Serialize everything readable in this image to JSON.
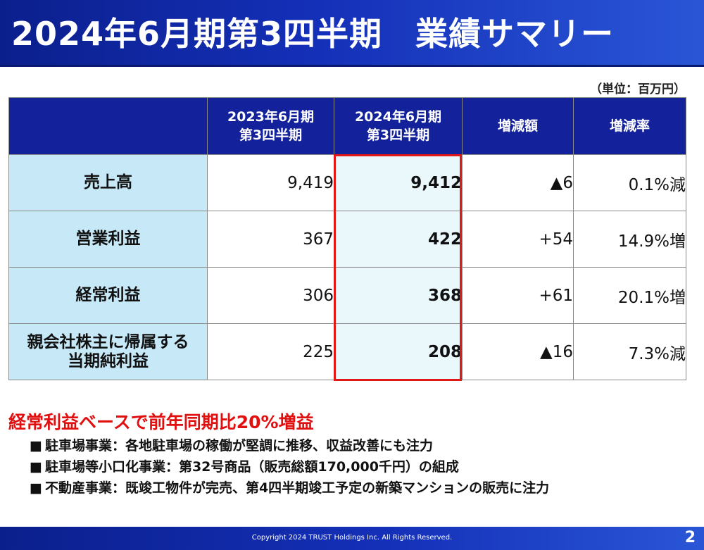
{
  "header": {
    "title": "2024年6月期第3四半期　業績サマリー"
  },
  "unit_note": "（単位：百万円）",
  "table": {
    "headers": [
      "",
      "2023年6月期\n第3四半期",
      "2024年6月期\n第3四半期",
      "増減額",
      "増減率"
    ],
    "rows": [
      {
        "label": "売上高",
        "prev": "9,419",
        "current": "9,412",
        "change": "▲6",
        "rate": "0.1%減"
      },
      {
        "label": "営業利益",
        "prev": "367",
        "current": "422",
        "change": "+54",
        "rate": "14.9%増"
      },
      {
        "label": "経常利益",
        "prev": "306",
        "current": "368",
        "change": "+61",
        "rate": "20.1%増"
      },
      {
        "label": "親会社株主に帰属する\n当期純利益",
        "prev": "225",
        "current": "208",
        "change": "▲16",
        "rate": "7.3%減"
      }
    ]
  },
  "highlight": {
    "headline": "経常利益ベースで前年同期比20%増益",
    "bullet_marker": "■",
    "bullets": [
      "駐車場事業：各地駐車場の稼働が堅調に推移、収益改善にも注力",
      "駐車場等小口化事業：第32号商品（販売総額170,000千円）の組成",
      "不動産事業：既竣工物件が完売、第4四半期竣工予定の新築マンションの販売に注力"
    ]
  },
  "footer": {
    "copyright": "Copyright 2024 TRUST Holdings Inc. All Rights Reserved.",
    "page_number": "2"
  },
  "colors": {
    "header_blue": "#13219a",
    "label_cell": "#c6e8f7",
    "highlight_red": "#e01818"
  }
}
